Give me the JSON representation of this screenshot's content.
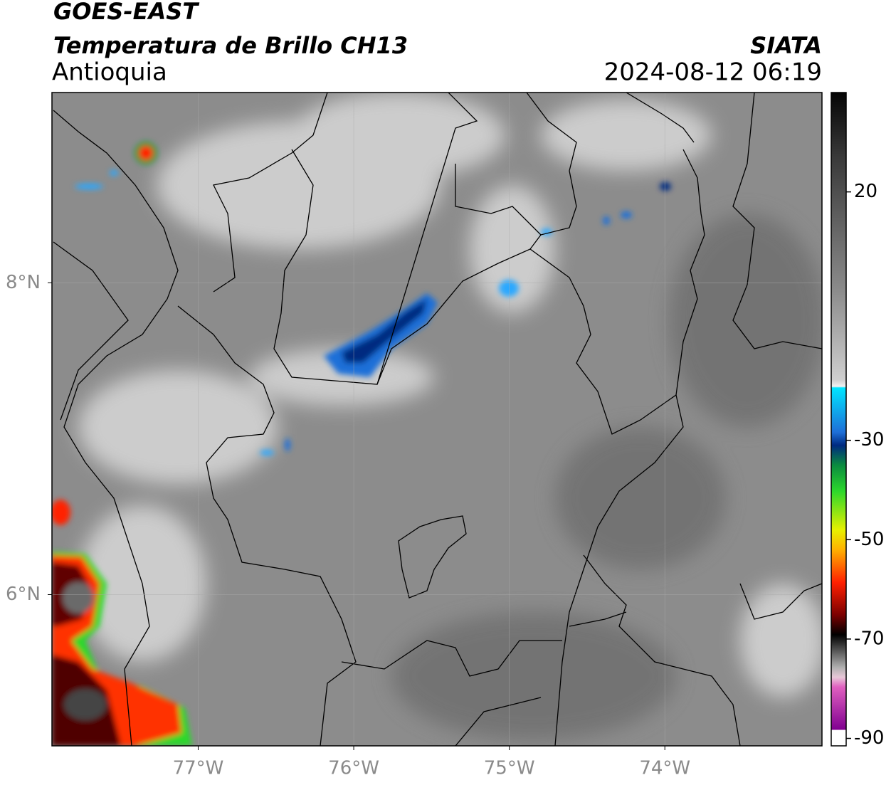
{
  "header": {
    "satellite": "GOES-EAST",
    "product": "Temperatura de Brillo CH13",
    "region": "Antioquia",
    "source": "SIATA",
    "datetime": "2024-08-12 06:19"
  },
  "map": {
    "lon_range": [
      -77.94,
      -72.99
    ],
    "lat_range": [
      5.03,
      9.22
    ],
    "lon_ticks": [
      {
        "value": -77,
        "label": "77°W"
      },
      {
        "value": -76,
        "label": "76°W"
      },
      {
        "value": -75,
        "label": "75°W"
      },
      {
        "value": -74,
        "label": "74°W"
      }
    ],
    "lat_ticks": [
      {
        "value": 8,
        "label": "8°N"
      },
      {
        "value": 6,
        "label": "6°N"
      }
    ]
  },
  "colorbar": {
    "range": [
      -91.5,
      40
    ],
    "ticks": [
      20,
      -30,
      -50,
      -70,
      -90
    ]
  }
}
